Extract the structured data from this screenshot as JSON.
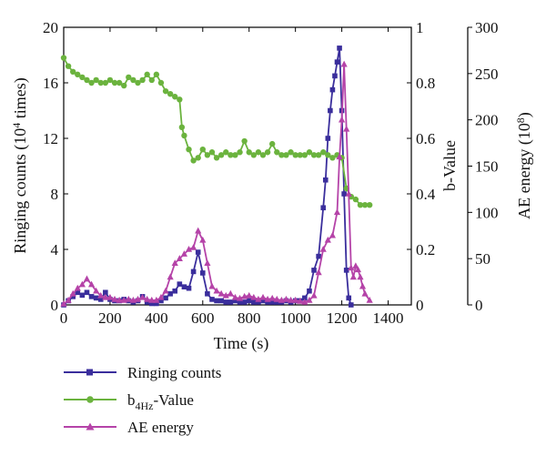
{
  "chart_data": {
    "type": "line",
    "x_axis": {
      "label": "Time (s)",
      "range": [
        0,
        1500
      ],
      "ticks": [
        "0",
        "200",
        "400",
        "600",
        "800",
        "1000",
        "1200",
        "1400"
      ]
    },
    "y_axes": {
      "left": {
        "label_main": "Ringing counts (10",
        "label_sup": "4",
        "label_end": " times)",
        "range": [
          0,
          20
        ],
        "ticks": [
          "0",
          "4",
          "8",
          "12",
          "16",
          "20"
        ]
      },
      "right1": {
        "label": "b-Value",
        "range": [
          0,
          1
        ],
        "ticks": [
          "0",
          "0.2",
          "0.4",
          "0.6",
          "0.8",
          "1"
        ]
      },
      "right2": {
        "label_main": "AE energy (10",
        "label_sup": "8",
        "label_end": ")",
        "range": [
          0,
          300
        ],
        "ticks": [
          "0",
          "50",
          "100",
          "150",
          "200",
          "250",
          "300"
        ]
      }
    },
    "series": [
      {
        "name": "Ringing counts",
        "axis": "left",
        "color": "#3a2e9c",
        "marker": "square",
        "x": [
          0,
          20,
          40,
          60,
          80,
          100,
          120,
          140,
          160,
          180,
          200,
          220,
          240,
          260,
          280,
          300,
          320,
          340,
          360,
          380,
          400,
          420,
          440,
          460,
          480,
          500,
          520,
          540,
          560,
          580,
          600,
          620,
          640,
          660,
          680,
          700,
          720,
          740,
          760,
          780,
          800,
          820,
          840,
          860,
          880,
          900,
          920,
          940,
          960,
          980,
          1000,
          1020,
          1040,
          1060,
          1080,
          1100,
          1120,
          1130,
          1140,
          1150,
          1160,
          1170,
          1180,
          1190,
          1200,
          1210,
          1220,
          1230,
          1240
        ],
        "values": [
          0,
          0.3,
          0.6,
          0.9,
          0.7,
          0.9,
          0.6,
          0.5,
          0.4,
          0.9,
          0.4,
          0.3,
          0.3,
          0.4,
          0.3,
          0.2,
          0.3,
          0.6,
          0.2,
          0.1,
          0.1,
          0.3,
          0.5,
          0.8,
          1.0,
          1.5,
          1.3,
          1.2,
          2.4,
          3.8,
          2.3,
          0.8,
          0.4,
          0.3,
          0.3,
          0.2,
          0.2,
          0.3,
          0.2,
          0.2,
          0.3,
          0.2,
          0.2,
          0.3,
          0.2,
          0.2,
          0.2,
          0.2,
          0.3,
          0.2,
          0.3,
          0.3,
          0.5,
          1.0,
          2.5,
          3.5,
          7.0,
          9.0,
          12.0,
          14.0,
          15.5,
          16.5,
          17.5,
          18.5,
          14.0,
          8.0,
          2.5,
          0.5,
          0
        ]
      },
      {
        "name": "b4Hz-Value",
        "name_main": "b",
        "name_sub": "4Hz",
        "name_end": "-Value",
        "axis": "right1",
        "color": "#6bb33e",
        "marker": "circle",
        "x": [
          0,
          20,
          40,
          60,
          80,
          100,
          120,
          140,
          160,
          180,
          200,
          220,
          240,
          260,
          280,
          300,
          320,
          340,
          360,
          380,
          400,
          420,
          440,
          460,
          480,
          500,
          510,
          520,
          540,
          560,
          580,
          600,
          620,
          640,
          660,
          680,
          700,
          720,
          740,
          760,
          780,
          800,
          820,
          840,
          860,
          880,
          900,
          920,
          940,
          960,
          980,
          1000,
          1020,
          1040,
          1060,
          1080,
          1100,
          1120,
          1140,
          1160,
          1180,
          1200,
          1220,
          1240,
          1260,
          1280,
          1300,
          1320
        ],
        "values": [
          0.89,
          0.86,
          0.84,
          0.83,
          0.82,
          0.81,
          0.8,
          0.81,
          0.8,
          0.8,
          0.81,
          0.8,
          0.8,
          0.79,
          0.82,
          0.81,
          0.8,
          0.81,
          0.83,
          0.81,
          0.83,
          0.8,
          0.77,
          0.76,
          0.75,
          0.74,
          0.64,
          0.61,
          0.56,
          0.52,
          0.53,
          0.56,
          0.54,
          0.55,
          0.53,
          0.54,
          0.55,
          0.54,
          0.54,
          0.55,
          0.59,
          0.55,
          0.54,
          0.55,
          0.54,
          0.55,
          0.58,
          0.55,
          0.54,
          0.54,
          0.55,
          0.54,
          0.54,
          0.54,
          0.55,
          0.54,
          0.54,
          0.55,
          0.54,
          0.53,
          0.54,
          0.53,
          0.42,
          0.39,
          0.38,
          0.36,
          0.36,
          0.36
        ]
      },
      {
        "name": "AE energy",
        "axis": "right2",
        "color": "#b543a8",
        "marker": "triangle",
        "x": [
          0,
          20,
          40,
          60,
          80,
          100,
          120,
          140,
          160,
          180,
          200,
          220,
          240,
          260,
          280,
          300,
          320,
          340,
          360,
          380,
          400,
          420,
          440,
          460,
          480,
          500,
          520,
          540,
          560,
          580,
          600,
          620,
          640,
          660,
          680,
          700,
          720,
          740,
          760,
          780,
          800,
          820,
          840,
          860,
          880,
          900,
          920,
          940,
          960,
          980,
          1000,
          1020,
          1040,
          1060,
          1080,
          1100,
          1120,
          1140,
          1160,
          1180,
          1190,
          1200,
          1210,
          1220,
          1230,
          1240,
          1250,
          1260,
          1270,
          1280,
          1290,
          1300,
          1320
        ],
        "values": [
          1,
          5,
          12,
          18,
          22,
          28,
          22,
          15,
          10,
          8,
          8,
          6,
          5,
          5,
          6,
          5,
          6,
          8,
          6,
          5,
          5,
          8,
          15,
          30,
          45,
          50,
          55,
          60,
          62,
          80,
          70,
          45,
          20,
          15,
          12,
          10,
          12,
          8,
          7,
          9,
          10,
          8,
          6,
          8,
          6,
          7,
          6,
          5,
          6,
          5,
          5,
          4,
          3,
          5,
          10,
          35,
          60,
          70,
          75,
          100,
          160,
          200,
          260,
          190,
          120,
          40,
          30,
          42,
          38,
          30,
          20,
          12,
          5
        ]
      }
    ]
  }
}
